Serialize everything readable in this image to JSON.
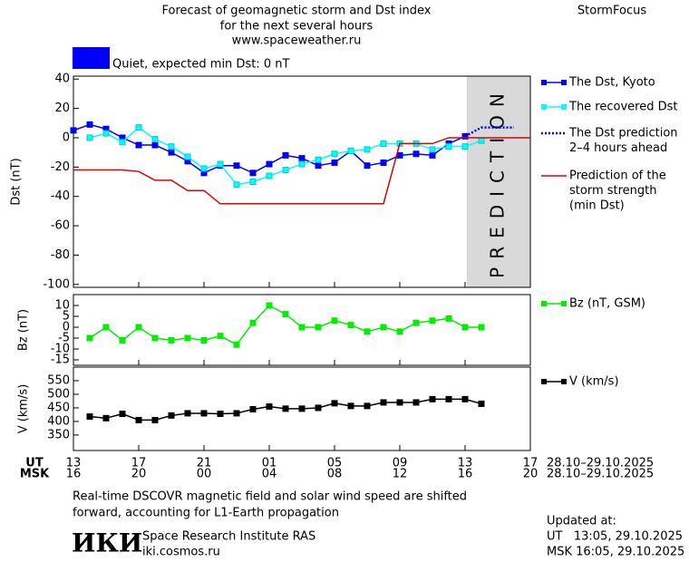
{
  "header": {
    "title": [
      "Forecast of geomagnetic storm and Dst index",
      "for the next several hours",
      "www.spaceweather.ru"
    ],
    "brand": "StormFocus",
    "status": {
      "color": "#0000ff",
      "text": "Quiet, expected min Dst: 0 nT"
    }
  },
  "time_axis": {
    "xlim": [
      0,
      28
    ],
    "ut_label": "UT",
    "msk_label": "MSK",
    "date_range": "28.10–29.10.2025",
    "ut_ticks": [
      {
        "value": 0,
        "label": "13"
      },
      {
        "value": 4,
        "label": "17"
      },
      {
        "value": 8,
        "label": "21"
      },
      {
        "value": 12,
        "label": "01"
      },
      {
        "value": 16,
        "label": "05"
      },
      {
        "value": 20,
        "label": "09"
      },
      {
        "value": 24,
        "label": "13"
      },
      {
        "value": 28,
        "label": "17"
      }
    ],
    "msk_ticks": [
      {
        "value": 0,
        "label": "16"
      },
      {
        "value": 4,
        "label": "20"
      },
      {
        "value": 8,
        "label": "00"
      },
      {
        "value": 12,
        "label": "04"
      },
      {
        "value": 16,
        "label": "08"
      },
      {
        "value": 20,
        "label": "12"
      },
      {
        "value": 24,
        "label": "16"
      },
      {
        "value": 28,
        "label": "20"
      }
    ]
  },
  "chart_data": [
    {
      "type": "line",
      "ylabel": "Dst (nT)",
      "xlim": [
        0,
        28
      ],
      "ylim": [
        -102,
        42
      ],
      "yticks": [
        40,
        20,
        0,
        -20,
        -40,
        -60,
        -80,
        -100
      ],
      "shaded_region": {
        "label": "PREDICTION",
        "start": 24.1,
        "end": 28,
        "color": "#d9d9d9"
      },
      "series": [
        {
          "name": [
            "The Dst, Kyoto"
          ],
          "color": "#0000ff",
          "marker": true,
          "x": [
            0,
            1,
            2,
            3,
            4,
            5,
            6,
            7,
            8,
            9,
            10,
            11,
            12,
            13,
            14,
            15,
            16,
            17,
            18,
            19,
            20,
            21,
            22,
            23,
            24
          ],
          "values": [
            5,
            9,
            6,
            0,
            -5,
            -5,
            -10,
            -16,
            -24,
            -19,
            -19,
            -24,
            -18,
            -12,
            -14,
            -19,
            -17,
            -9,
            -19,
            -17,
            -12,
            -11,
            -12,
            -4,
            1
          ]
        },
        {
          "name": [
            "The recovered Dst"
          ],
          "color": "#00ffff",
          "marker": true,
          "x": [
            1,
            2,
            3,
            4,
            5,
            6,
            7,
            8,
            9,
            10,
            11,
            12,
            13,
            14,
            15,
            16,
            17,
            18,
            19,
            20,
            21,
            22,
            23,
            24,
            25
          ],
          "values": [
            0,
            3,
            -3,
            7,
            -1,
            -6,
            -13,
            -21,
            -18,
            -32,
            -30,
            -26,
            -22,
            -18,
            -15,
            -11,
            -9,
            -8,
            -4,
            -4,
            -4,
            -8,
            -6,
            -6,
            -2
          ]
        },
        {
          "name": [
            "The Dst prediction",
            "2–4 hours ahead"
          ],
          "color": "#0000ff",
          "dotted": true,
          "x": [
            24,
            25,
            27
          ],
          "values": [
            1,
            7,
            7
          ]
        },
        {
          "name": [
            "Prediction of the",
            "storm strength",
            "(min Dst)"
          ],
          "color": "#e00000",
          "x": [
            0,
            1,
            2,
            3,
            4,
            5,
            6,
            7,
            8,
            9,
            10,
            11,
            12,
            13,
            14,
            15,
            16,
            17,
            18,
            19,
            20,
            21,
            22,
            23,
            24,
            25,
            26,
            27,
            28
          ],
          "values": [
            -22,
            -22,
            -22,
            -22,
            -23,
            -29,
            -29,
            -36,
            -36,
            -45,
            -45,
            -45,
            -45,
            -45,
            -45,
            -45,
            -45,
            -45,
            -45,
            -45,
            -4,
            -4,
            -4,
            0,
            0,
            0,
            0,
            0,
            0
          ]
        }
      ]
    },
    {
      "type": "line",
      "ylabel": "Bz (nT)",
      "xlim": [
        0,
        28
      ],
      "ylim": [
        -17.5,
        15
      ],
      "yticks": [
        10,
        5,
        0,
        -5,
        -10,
        -15
      ],
      "series": [
        {
          "name": [
            "Bz (nT, GSM)"
          ],
          "color": "#00ee00",
          "marker": true,
          "x": [
            1,
            2,
            3,
            4,
            5,
            6,
            7,
            8,
            9,
            10,
            11,
            12,
            13,
            14,
            15,
            16,
            17,
            18,
            19,
            20,
            21,
            22,
            23,
            24,
            25
          ],
          "values": [
            -5,
            0,
            -6,
            0,
            -5,
            -6,
            -5,
            -6,
            -4,
            -8,
            2,
            10,
            6,
            0,
            0,
            3,
            1,
            -2,
            0,
            -2,
            2,
            3,
            4,
            0,
            0
          ]
        }
      ]
    },
    {
      "type": "line",
      "ylabel": "V (km/s)",
      "xlim": [
        0,
        28
      ],
      "ylim": [
        293,
        600
      ],
      "yticks": [
        550,
        500,
        450,
        400,
        350
      ],
      "series": [
        {
          "name": [
            "V (km/s)"
          ],
          "color": "#000000",
          "marker": true,
          "x": [
            1,
            2,
            3,
            4,
            5,
            6,
            7,
            8,
            9,
            10,
            11,
            12,
            13,
            14,
            15,
            16,
            17,
            18,
            19,
            20,
            21,
            22,
            23,
            24,
            25
          ],
          "values": [
            418,
            412,
            428,
            405,
            405,
            422,
            430,
            430,
            428,
            430,
            445,
            455,
            447,
            447,
            450,
            467,
            457,
            457,
            470,
            470,
            470,
            482,
            482,
            482,
            465
          ]
        }
      ]
    }
  ],
  "footer": {
    "note": [
      "Real-time DSCOVR magnetic field and solar wind speed are shifted",
      "forward, accounting for L1-Earth propagation"
    ],
    "logo": "ИКИ",
    "institute": [
      "Space Research Institute RAS",
      "iki.cosmos.ru"
    ],
    "updated": [
      "Updated at:",
      "UT   13:05, 29.10.2025",
      "MSK 16:05, 29.10.2025"
    ]
  }
}
